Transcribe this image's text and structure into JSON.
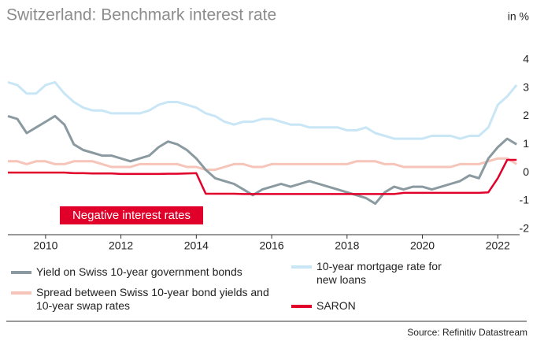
{
  "chart_data": {
    "type": "line",
    "title": "Switzerland: Benchmark interest rate",
    "y_unit": "in %",
    "annotation": "Negative interest rates",
    "source": "Source: Refinitiv Datastream",
    "x": [
      2009,
      2009.25,
      2009.5,
      2009.75,
      2010,
      2010.25,
      2010.5,
      2010.75,
      2011,
      2011.25,
      2011.5,
      2011.75,
      2012,
      2012.25,
      2012.5,
      2012.75,
      2013,
      2013.25,
      2013.5,
      2013.75,
      2014,
      2014.25,
      2014.5,
      2014.75,
      2015,
      2015.25,
      2015.5,
      2015.75,
      2016,
      2016.25,
      2016.5,
      2016.75,
      2017,
      2017.25,
      2017.5,
      2017.75,
      2018,
      2018.25,
      2018.5,
      2018.75,
      2019,
      2019.25,
      2019.5,
      2019.75,
      2020,
      2020.25,
      2020.5,
      2020.75,
      2021,
      2021.25,
      2021.5,
      2021.75,
      2022,
      2022.25,
      2022.5
    ],
    "series": [
      {
        "name": "Yield on Swiss 10-year government bonds",
        "color": "#8a9aa0",
        "values": [
          2.0,
          1.9,
          1.4,
          1.6,
          1.8,
          2.0,
          1.7,
          1.0,
          0.8,
          0.7,
          0.6,
          0.6,
          0.5,
          0.4,
          0.5,
          0.6,
          0.9,
          1.1,
          1.0,
          0.8,
          0.5,
          0.1,
          -0.2,
          -0.3,
          -0.4,
          -0.6,
          -0.8,
          -0.6,
          -0.5,
          -0.4,
          -0.5,
          -0.4,
          -0.3,
          -0.4,
          -0.5,
          -0.6,
          -0.7,
          -0.8,
          -0.9,
          -1.1,
          -0.7,
          -0.5,
          -0.6,
          -0.5,
          -0.5,
          -0.6,
          -0.5,
          -0.4,
          -0.3,
          -0.1,
          -0.2,
          0.5,
          0.9,
          1.2,
          1.0
        ]
      },
      {
        "name": "Spread between Swiss 10-year bond yields and 10-year swap rates",
        "color": "#f6c4b8",
        "values": [
          0.4,
          0.4,
          0.3,
          0.4,
          0.4,
          0.3,
          0.3,
          0.4,
          0.4,
          0.4,
          0.3,
          0.2,
          0.2,
          0.2,
          0.3,
          0.3,
          0.3,
          0.3,
          0.3,
          0.2,
          0.2,
          0.1,
          0.1,
          0.2,
          0.3,
          0.3,
          0.2,
          0.2,
          0.3,
          0.3,
          0.3,
          0.3,
          0.3,
          0.3,
          0.3,
          0.3,
          0.3,
          0.4,
          0.4,
          0.4,
          0.3,
          0.3,
          0.2,
          0.2,
          0.2,
          0.2,
          0.2,
          0.2,
          0.3,
          0.3,
          0.3,
          0.4,
          0.5,
          0.5,
          0.3
        ]
      },
      {
        "name": "10-year mortgage rate for new loans",
        "color": "#c8e6f5",
        "values": [
          3.2,
          3.1,
          2.8,
          2.8,
          3.1,
          3.2,
          2.8,
          2.5,
          2.3,
          2.2,
          2.2,
          2.1,
          2.1,
          2.1,
          2.1,
          2.2,
          2.4,
          2.5,
          2.5,
          2.4,
          2.3,
          2.1,
          2.0,
          1.8,
          1.7,
          1.8,
          1.8,
          1.9,
          1.9,
          1.8,
          1.7,
          1.7,
          1.6,
          1.6,
          1.6,
          1.6,
          1.5,
          1.5,
          1.6,
          1.4,
          1.3,
          1.2,
          1.2,
          1.2,
          1.2,
          1.3,
          1.3,
          1.3,
          1.2,
          1.3,
          1.3,
          1.6,
          2.4,
          2.7,
          3.1
        ]
      },
      {
        "name": "SARON",
        "color": "#e0002a",
        "values": [
          0.0,
          0.0,
          0.0,
          0.0,
          0.0,
          0.0,
          0.0,
          -0.02,
          -0.02,
          -0.03,
          -0.03,
          -0.03,
          -0.05,
          -0.05,
          -0.05,
          -0.05,
          -0.05,
          -0.04,
          -0.04,
          -0.03,
          -0.02,
          -0.75,
          -0.75,
          -0.75,
          -0.75,
          -0.76,
          -0.76,
          -0.76,
          -0.76,
          -0.76,
          -0.76,
          -0.76,
          -0.76,
          -0.76,
          -0.76,
          -0.76,
          -0.76,
          -0.76,
          -0.76,
          -0.76,
          -0.76,
          -0.76,
          -0.72,
          -0.72,
          -0.72,
          -0.72,
          -0.72,
          -0.72,
          -0.72,
          -0.72,
          -0.72,
          -0.7,
          -0.2,
          0.45,
          0.45
        ]
      }
    ],
    "draw_order": [
      2,
      1,
      0,
      3
    ],
    "xlim": [
      2009,
      2022.6
    ],
    "xticks": [
      2010,
      2012,
      2014,
      2016,
      2018,
      2020,
      2022
    ],
    "ylim": [
      -2.2,
      4.3
    ],
    "yticks": [
      4,
      3,
      2,
      1,
      0,
      -1,
      -2
    ]
  }
}
